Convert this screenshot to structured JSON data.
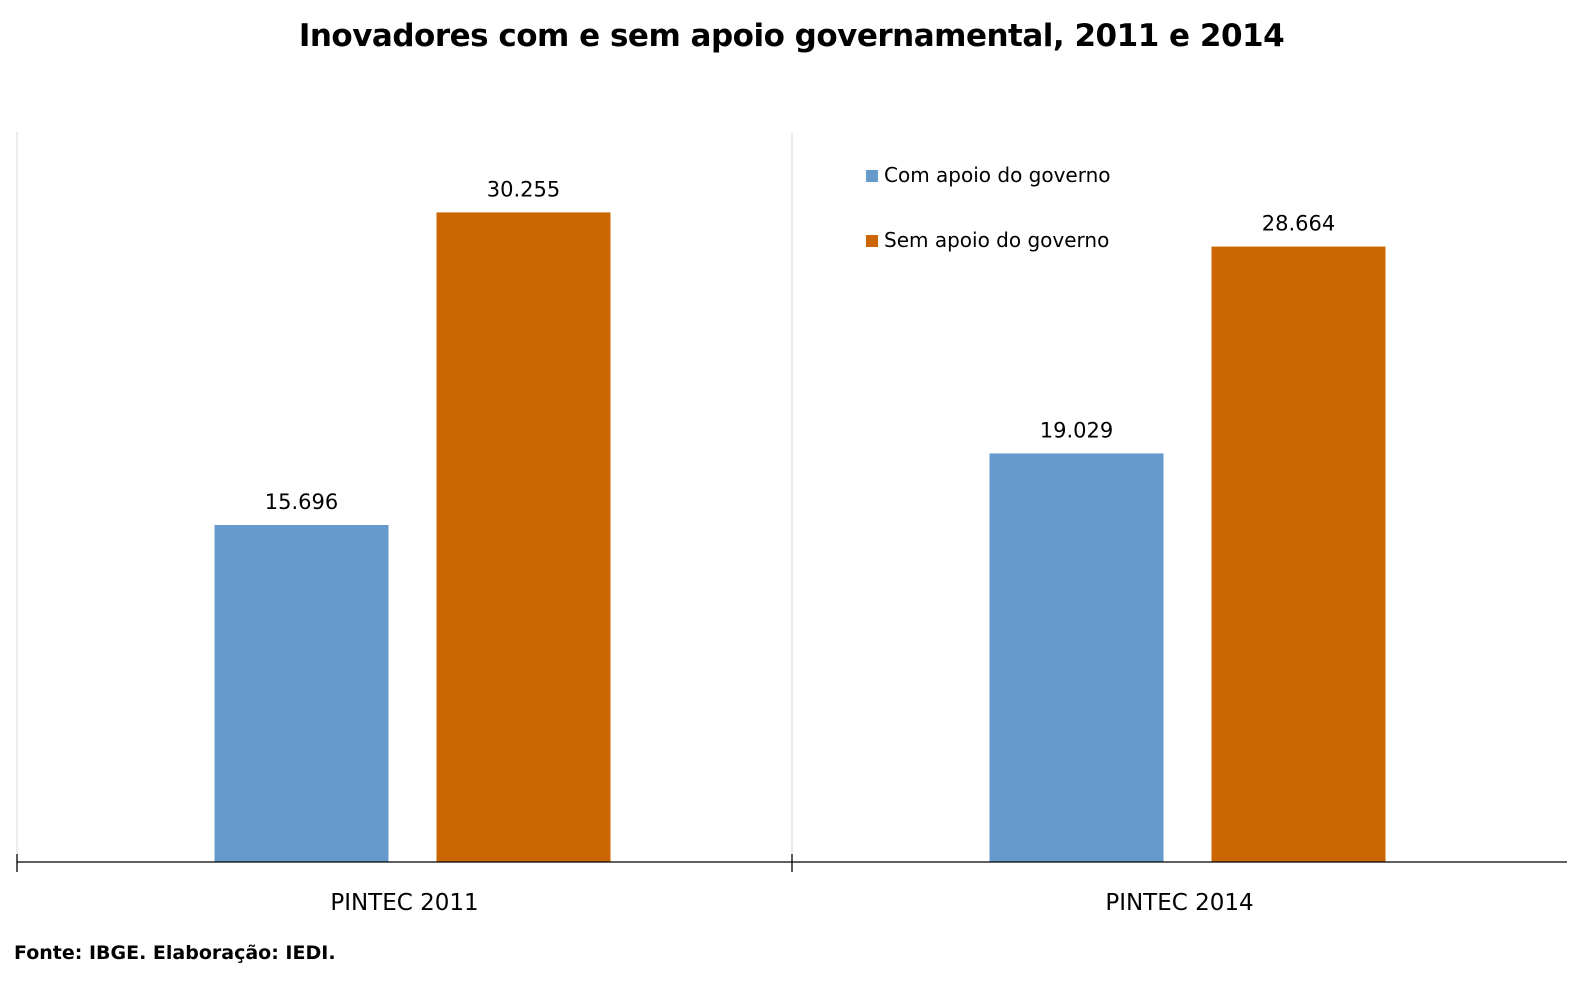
{
  "title": "Inovadores com e sem apoio governamental, 2011 e 2014",
  "source": "Fonte: IBGE. Elaboração: IEDI.",
  "chart_data": {
    "type": "bar",
    "title": "Inovadores com e sem apoio governamental, 2011 e 2014",
    "xlabel": "",
    "ylabel": "",
    "ylim": [
      0,
      34000
    ],
    "grid": false,
    "legend_position": "top-right",
    "categories": [
      "PINTEC 2011",
      "PINTEC 2014"
    ],
    "series": [
      {
        "name": "Com apoio do governo",
        "color": "#6699cc",
        "values": [
          15696,
          19029
        ],
        "labels": [
          "15.696",
          "19.029"
        ]
      },
      {
        "name": "Sem apoio do governo",
        "color": "#cc6600",
        "values": [
          30255,
          28664
        ],
        "labels": [
          "30.255",
          "28.664"
        ]
      }
    ]
  }
}
